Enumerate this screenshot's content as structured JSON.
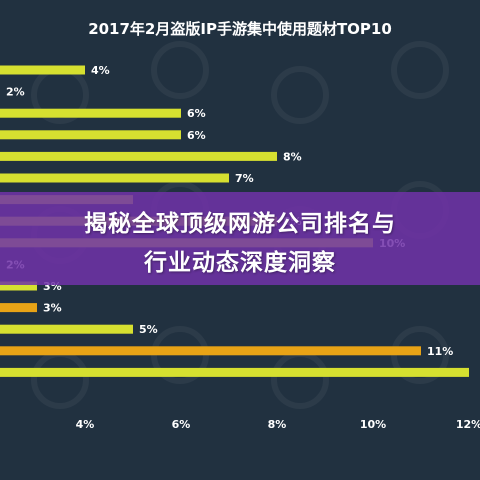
{
  "chart_data": {
    "type": "bar",
    "orientation": "horizontal",
    "title": "2017年2月盗版IP手游集中使用题材TOP10",
    "values": [
      4,
      2,
      6,
      6,
      8,
      7,
      5,
      8,
      10,
      2,
      3,
      3,
      5,
      11,
      12
    ],
    "value_labels": [
      "4%",
      "2%",
      "6%",
      "6%",
      "8%",
      "7%",
      "",
      "8%",
      "10%",
      "2%",
      "3%",
      "3%",
      "5%",
      "11%",
      ""
    ],
    "bar_colors": [
      "#d6e030",
      "#d6e030",
      "#d6e030",
      "#d6e030",
      "#d6e030",
      "#d6e030",
      "#d6e030",
      "#d6e030",
      "#d6e030",
      "#d6e030",
      "#d6e030",
      "#e8a316",
      "#d6e030",
      "#e8a316",
      "#d6e030"
    ],
    "x_ticks": [
      4,
      6,
      8,
      10,
      12
    ],
    "x_tick_labels": [
      "4%",
      "6%",
      "8%",
      "10%",
      "12%"
    ],
    "xlim": [
      2.25,
      12
    ]
  },
  "banner": {
    "line1": "揭秘全球顶级网游公司排名与",
    "line2": "行业动态深度洞察"
  },
  "colors": {
    "background": "#213140",
    "bar": "#d6e030",
    "bar_highlight": "#e8a316",
    "banner": "#7032a8",
    "text": "#ffffff"
  }
}
